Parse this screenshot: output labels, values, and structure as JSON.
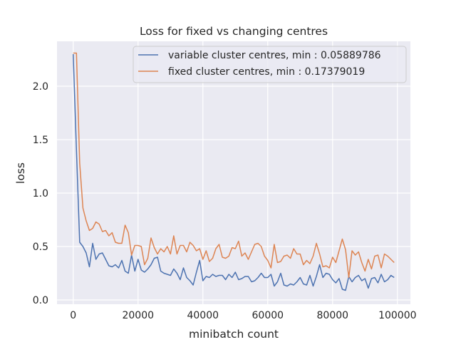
{
  "chart_data": {
    "type": "line",
    "title": "Loss for fixed vs changing centres",
    "xlabel": "minibatch count",
    "ylabel": "loss",
    "xlim": [
      -5000,
      104000
    ],
    "ylim": [
      -0.04,
      2.42
    ],
    "xticks": [
      0,
      20000,
      40000,
      60000,
      80000,
      100000
    ],
    "xtick_labels": [
      "0",
      "20000",
      "40000",
      "60000",
      "80000",
      "100000"
    ],
    "yticks": [
      0.0,
      0.5,
      1.0,
      1.5,
      2.0
    ],
    "ytick_labels": [
      "0.0",
      "0.5",
      "1.0",
      "1.5",
      "2.0"
    ],
    "grid": true,
    "legend_position": "upper right",
    "series": [
      {
        "name": "variable cluster centres, min : 0.05889786",
        "color": "#4c72b0",
        "x": [
          0,
          1000,
          2000,
          3000,
          4000,
          5000,
          6000,
          7000,
          8000,
          9000,
          10000,
          11000,
          12000,
          13000,
          14000,
          15000,
          16000,
          17000,
          18000,
          19000,
          20000,
          21000,
          22000,
          23000,
          24000,
          25000,
          26000,
          27000,
          28000,
          29000,
          30000,
          31000,
          32000,
          33000,
          34000,
          35000,
          36000,
          37000,
          38000,
          39000,
          40000,
          41000,
          42000,
          43000,
          44000,
          45000,
          46000,
          47000,
          48000,
          49000,
          50000,
          51000,
          52000,
          53000,
          54000,
          55000,
          56000,
          57000,
          58000,
          59000,
          60000,
          61000,
          62000,
          63000,
          64000,
          65000,
          66000,
          67000,
          68000,
          69000,
          70000,
          71000,
          72000,
          73000,
          74000,
          75000,
          76000,
          77000,
          78000,
          79000,
          80000,
          81000,
          82000,
          83000,
          84000,
          85000,
          86000,
          87000,
          88000,
          89000,
          90000,
          91000,
          92000,
          93000,
          94000,
          95000,
          96000,
          97000,
          98000,
          99000
        ],
        "y": [
          2.3,
          1.4,
          0.54,
          0.5,
          0.44,
          0.31,
          0.53,
          0.38,
          0.43,
          0.44,
          0.38,
          0.32,
          0.31,
          0.33,
          0.3,
          0.37,
          0.27,
          0.25,
          0.42,
          0.27,
          0.38,
          0.28,
          0.26,
          0.29,
          0.33,
          0.39,
          0.4,
          0.27,
          0.25,
          0.24,
          0.23,
          0.29,
          0.25,
          0.19,
          0.3,
          0.21,
          0.18,
          0.14,
          0.26,
          0.37,
          0.18,
          0.22,
          0.21,
          0.24,
          0.22,
          0.23,
          0.23,
          0.19,
          0.24,
          0.21,
          0.26,
          0.19,
          0.2,
          0.22,
          0.22,
          0.17,
          0.18,
          0.21,
          0.25,
          0.21,
          0.21,
          0.24,
          0.13,
          0.17,
          0.25,
          0.14,
          0.13,
          0.15,
          0.14,
          0.17,
          0.21,
          0.15,
          0.14,
          0.23,
          0.13,
          0.22,
          0.33,
          0.21,
          0.25,
          0.24,
          0.19,
          0.16,
          0.2,
          0.1,
          0.09,
          0.22,
          0.17,
          0.21,
          0.23,
          0.18,
          0.2,
          0.11,
          0.2,
          0.21,
          0.16,
          0.24,
          0.17,
          0.19,
          0.23,
          0.21
        ]
      },
      {
        "name": "fixed cluster centres, min : 0.17379019",
        "color": "#dd8452",
        "x": [
          0,
          1000,
          2000,
          3000,
          4000,
          5000,
          6000,
          7000,
          8000,
          9000,
          10000,
          11000,
          12000,
          13000,
          14000,
          15000,
          16000,
          17000,
          18000,
          19000,
          20000,
          21000,
          22000,
          23000,
          24000,
          25000,
          26000,
          27000,
          28000,
          29000,
          30000,
          31000,
          32000,
          33000,
          34000,
          35000,
          36000,
          37000,
          38000,
          39000,
          40000,
          41000,
          42000,
          43000,
          44000,
          45000,
          46000,
          47000,
          48000,
          49000,
          50000,
          51000,
          52000,
          53000,
          54000,
          55000,
          56000,
          57000,
          58000,
          59000,
          60000,
          61000,
          62000,
          63000,
          64000,
          65000,
          66000,
          67000,
          68000,
          69000,
          70000,
          71000,
          72000,
          73000,
          74000,
          75000,
          76000,
          77000,
          78000,
          79000,
          80000,
          81000,
          82000,
          83000,
          84000,
          85000,
          86000,
          87000,
          88000,
          89000,
          90000,
          91000,
          92000,
          93000,
          94000,
          95000,
          96000,
          97000,
          98000,
          99000
        ],
        "y": [
          2.31,
          2.31,
          1.28,
          0.86,
          0.74,
          0.65,
          0.67,
          0.73,
          0.71,
          0.64,
          0.65,
          0.6,
          0.63,
          0.54,
          0.53,
          0.53,
          0.7,
          0.63,
          0.42,
          0.51,
          0.51,
          0.5,
          0.33,
          0.39,
          0.58,
          0.49,
          0.43,
          0.48,
          0.45,
          0.5,
          0.43,
          0.6,
          0.43,
          0.51,
          0.51,
          0.45,
          0.54,
          0.51,
          0.46,
          0.48,
          0.38,
          0.46,
          0.36,
          0.39,
          0.48,
          0.52,
          0.4,
          0.39,
          0.41,
          0.49,
          0.48,
          0.55,
          0.41,
          0.44,
          0.38,
          0.45,
          0.52,
          0.53,
          0.5,
          0.41,
          0.37,
          0.3,
          0.52,
          0.35,
          0.36,
          0.41,
          0.42,
          0.39,
          0.48,
          0.43,
          0.43,
          0.33,
          0.37,
          0.34,
          0.41,
          0.53,
          0.43,
          0.31,
          0.32,
          0.3,
          0.4,
          0.35,
          0.46,
          0.57,
          0.47,
          0.21,
          0.46,
          0.42,
          0.45,
          0.35,
          0.27,
          0.38,
          0.29,
          0.41,
          0.42,
          0.3,
          0.43,
          0.41,
          0.38,
          0.35
        ]
      }
    ]
  }
}
